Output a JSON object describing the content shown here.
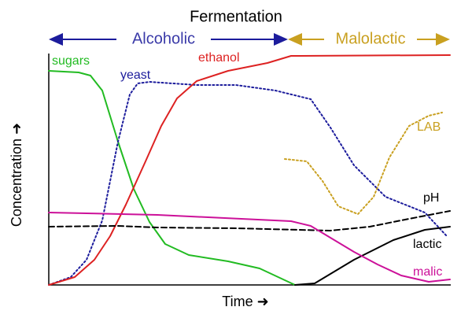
{
  "title": "Fermentation",
  "phases": [
    {
      "label": "Alcoholic"
    },
    {
      "label": "Malolactic"
    }
  ],
  "curves": [
    {
      "label": "sugars"
    },
    {
      "label": "yeast"
    },
    {
      "label": "ethanol"
    },
    {
      "label": "LAB"
    },
    {
      "label": "pH"
    },
    {
      "label": "lactic"
    },
    {
      "label": "malic"
    }
  ],
  "axes": {
    "y_label": "Concentration ➜",
    "x_label": "Time ➜"
  }
}
